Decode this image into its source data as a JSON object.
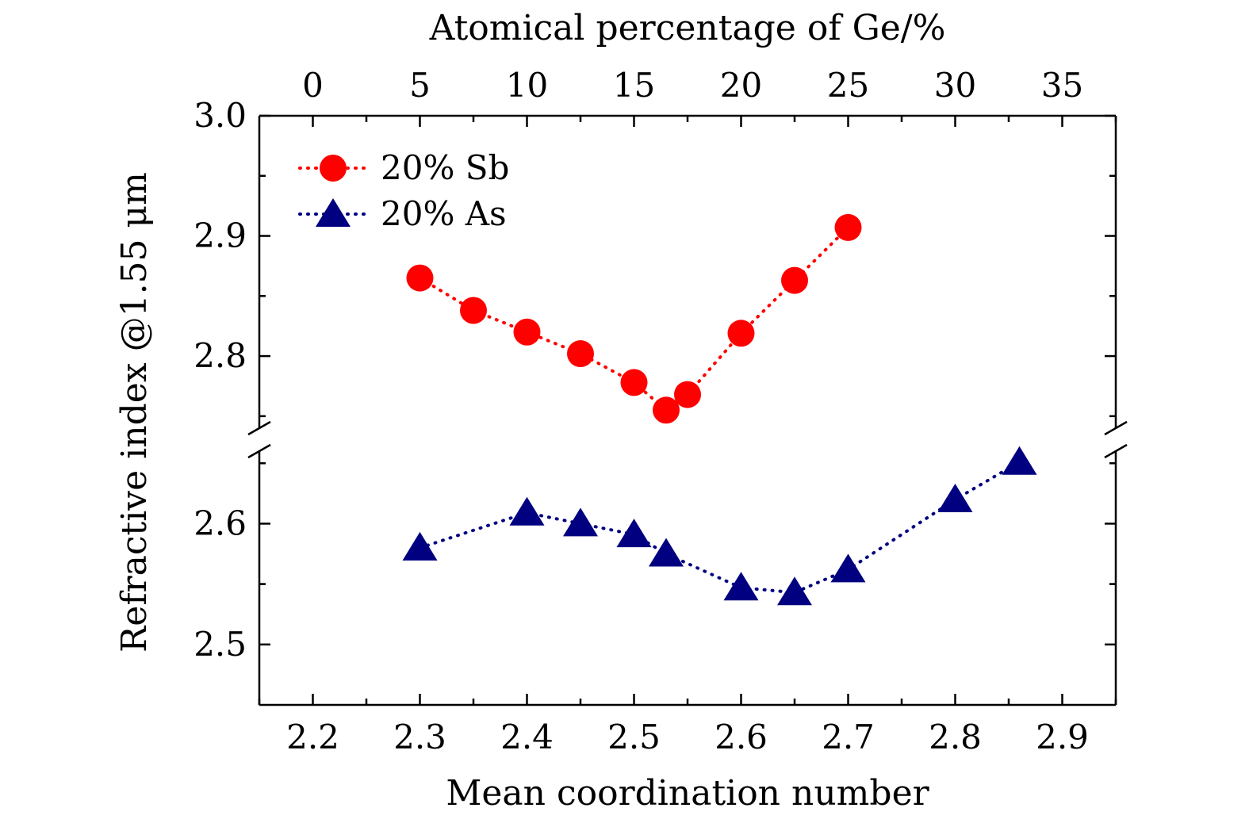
{
  "chart_data": {
    "type": "scatter",
    "xlabel": "Mean coordination number",
    "x2label": "Atomical percentage of Ge/%",
    "ylabel": "Refractive index @1.55 μm",
    "xlim": [
      2.15,
      2.95
    ],
    "x_ticks": [
      "2.2",
      "2.3",
      "2.4",
      "2.5",
      "2.6",
      "2.7",
      "2.8",
      "2.9"
    ],
    "x2_ticks": [
      "0",
      "5",
      "10",
      "15",
      "20",
      "25",
      "30",
      "35"
    ],
    "y_upper": {
      "ylim": [
        2.74,
        3.0
      ],
      "ticks": [
        "2.8",
        "2.9",
        "3.0"
      ]
    },
    "y_lower": {
      "ylim": [
        2.45,
        2.66
      ],
      "ticks": [
        "2.5",
        "2.6"
      ]
    },
    "axis_break": true,
    "legend_position": "top-left",
    "series": [
      {
        "name": "20% Sb",
        "marker": "circle",
        "line": "dotted",
        "color": "#ff0000",
        "panel": "upper",
        "x": [
          2.3,
          2.35,
          2.4,
          2.45,
          2.5,
          2.53,
          2.55,
          2.6,
          2.65,
          2.7
        ],
        "y": [
          2.865,
          2.838,
          2.82,
          2.802,
          2.778,
          2.755,
          2.768,
          2.819,
          2.863,
          2.907
        ]
      },
      {
        "name": "20% As",
        "marker": "triangle",
        "line": "dotted",
        "color": "#000080",
        "panel": "lower",
        "x": [
          2.3,
          2.4,
          2.45,
          2.5,
          2.53,
          2.6,
          2.65,
          2.7,
          2.8,
          2.86
        ],
        "y": [
          2.58,
          2.609,
          2.6,
          2.591,
          2.575,
          2.547,
          2.543,
          2.562,
          2.62,
          2.651
        ]
      }
    ]
  }
}
